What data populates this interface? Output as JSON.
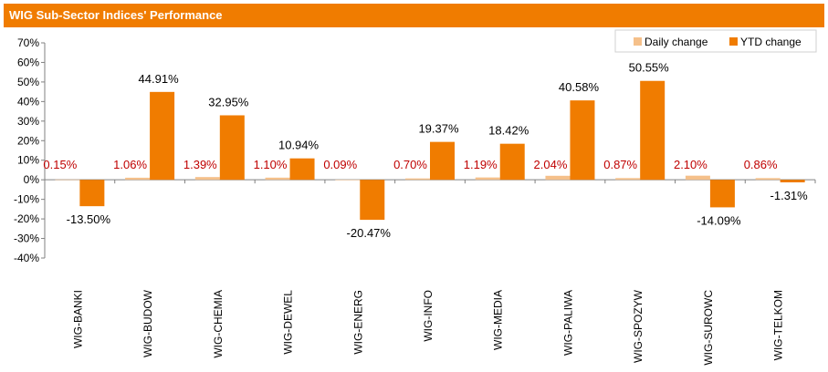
{
  "chart_data": {
    "type": "bar",
    "title": "WIG Sub-Sector Indices' Performance",
    "categories": [
      "WIG-BANKI",
      "WIG-BUDOW",
      "WIG-CHEMIA",
      "WIG-DEWEL",
      "WIG-ENERG",
      "WIG-INFO",
      "WIG-MEDIA",
      "WIG-PALIWA",
      "WIG-SPOZYW",
      "WIG-SUROWC",
      "WIG-TELKOM"
    ],
    "series": [
      {
        "name": "Daily change",
        "color": "#f5c08a",
        "label_color": "#c00000",
        "values": [
          0.15,
          1.06,
          1.39,
          1.1,
          0.09,
          0.7,
          1.19,
          2.04,
          0.87,
          2.1,
          0.86
        ],
        "labels": [
          "0.15%",
          "1.06%",
          "1.39%",
          "1.10%",
          "0.09%",
          "0.70%",
          "1.19%",
          "2.04%",
          "0.87%",
          "2.10%",
          "0.86%"
        ]
      },
      {
        "name": "YTD change",
        "color": "#f07c00",
        "label_color": "#000000",
        "values": [
          -13.5,
          44.91,
          32.95,
          10.94,
          -20.47,
          19.37,
          18.42,
          40.58,
          50.55,
          -14.09,
          -1.31
        ],
        "labels": [
          "-13.50%",
          "44.91%",
          "32.95%",
          "10.94%",
          "-20.47%",
          "19.37%",
          "18.42%",
          "40.58%",
          "50.55%",
          "-14.09%",
          "-1.31%"
        ]
      }
    ],
    "y_ticks": [
      "70%",
      "60%",
      "50%",
      "40%",
      "30%",
      "20%",
      "10%",
      "0%",
      "-10%",
      "-20%",
      "-30%",
      "-40%"
    ],
    "ylim": [
      -40,
      70
    ],
    "grid": false,
    "legend_position": "top-right"
  }
}
